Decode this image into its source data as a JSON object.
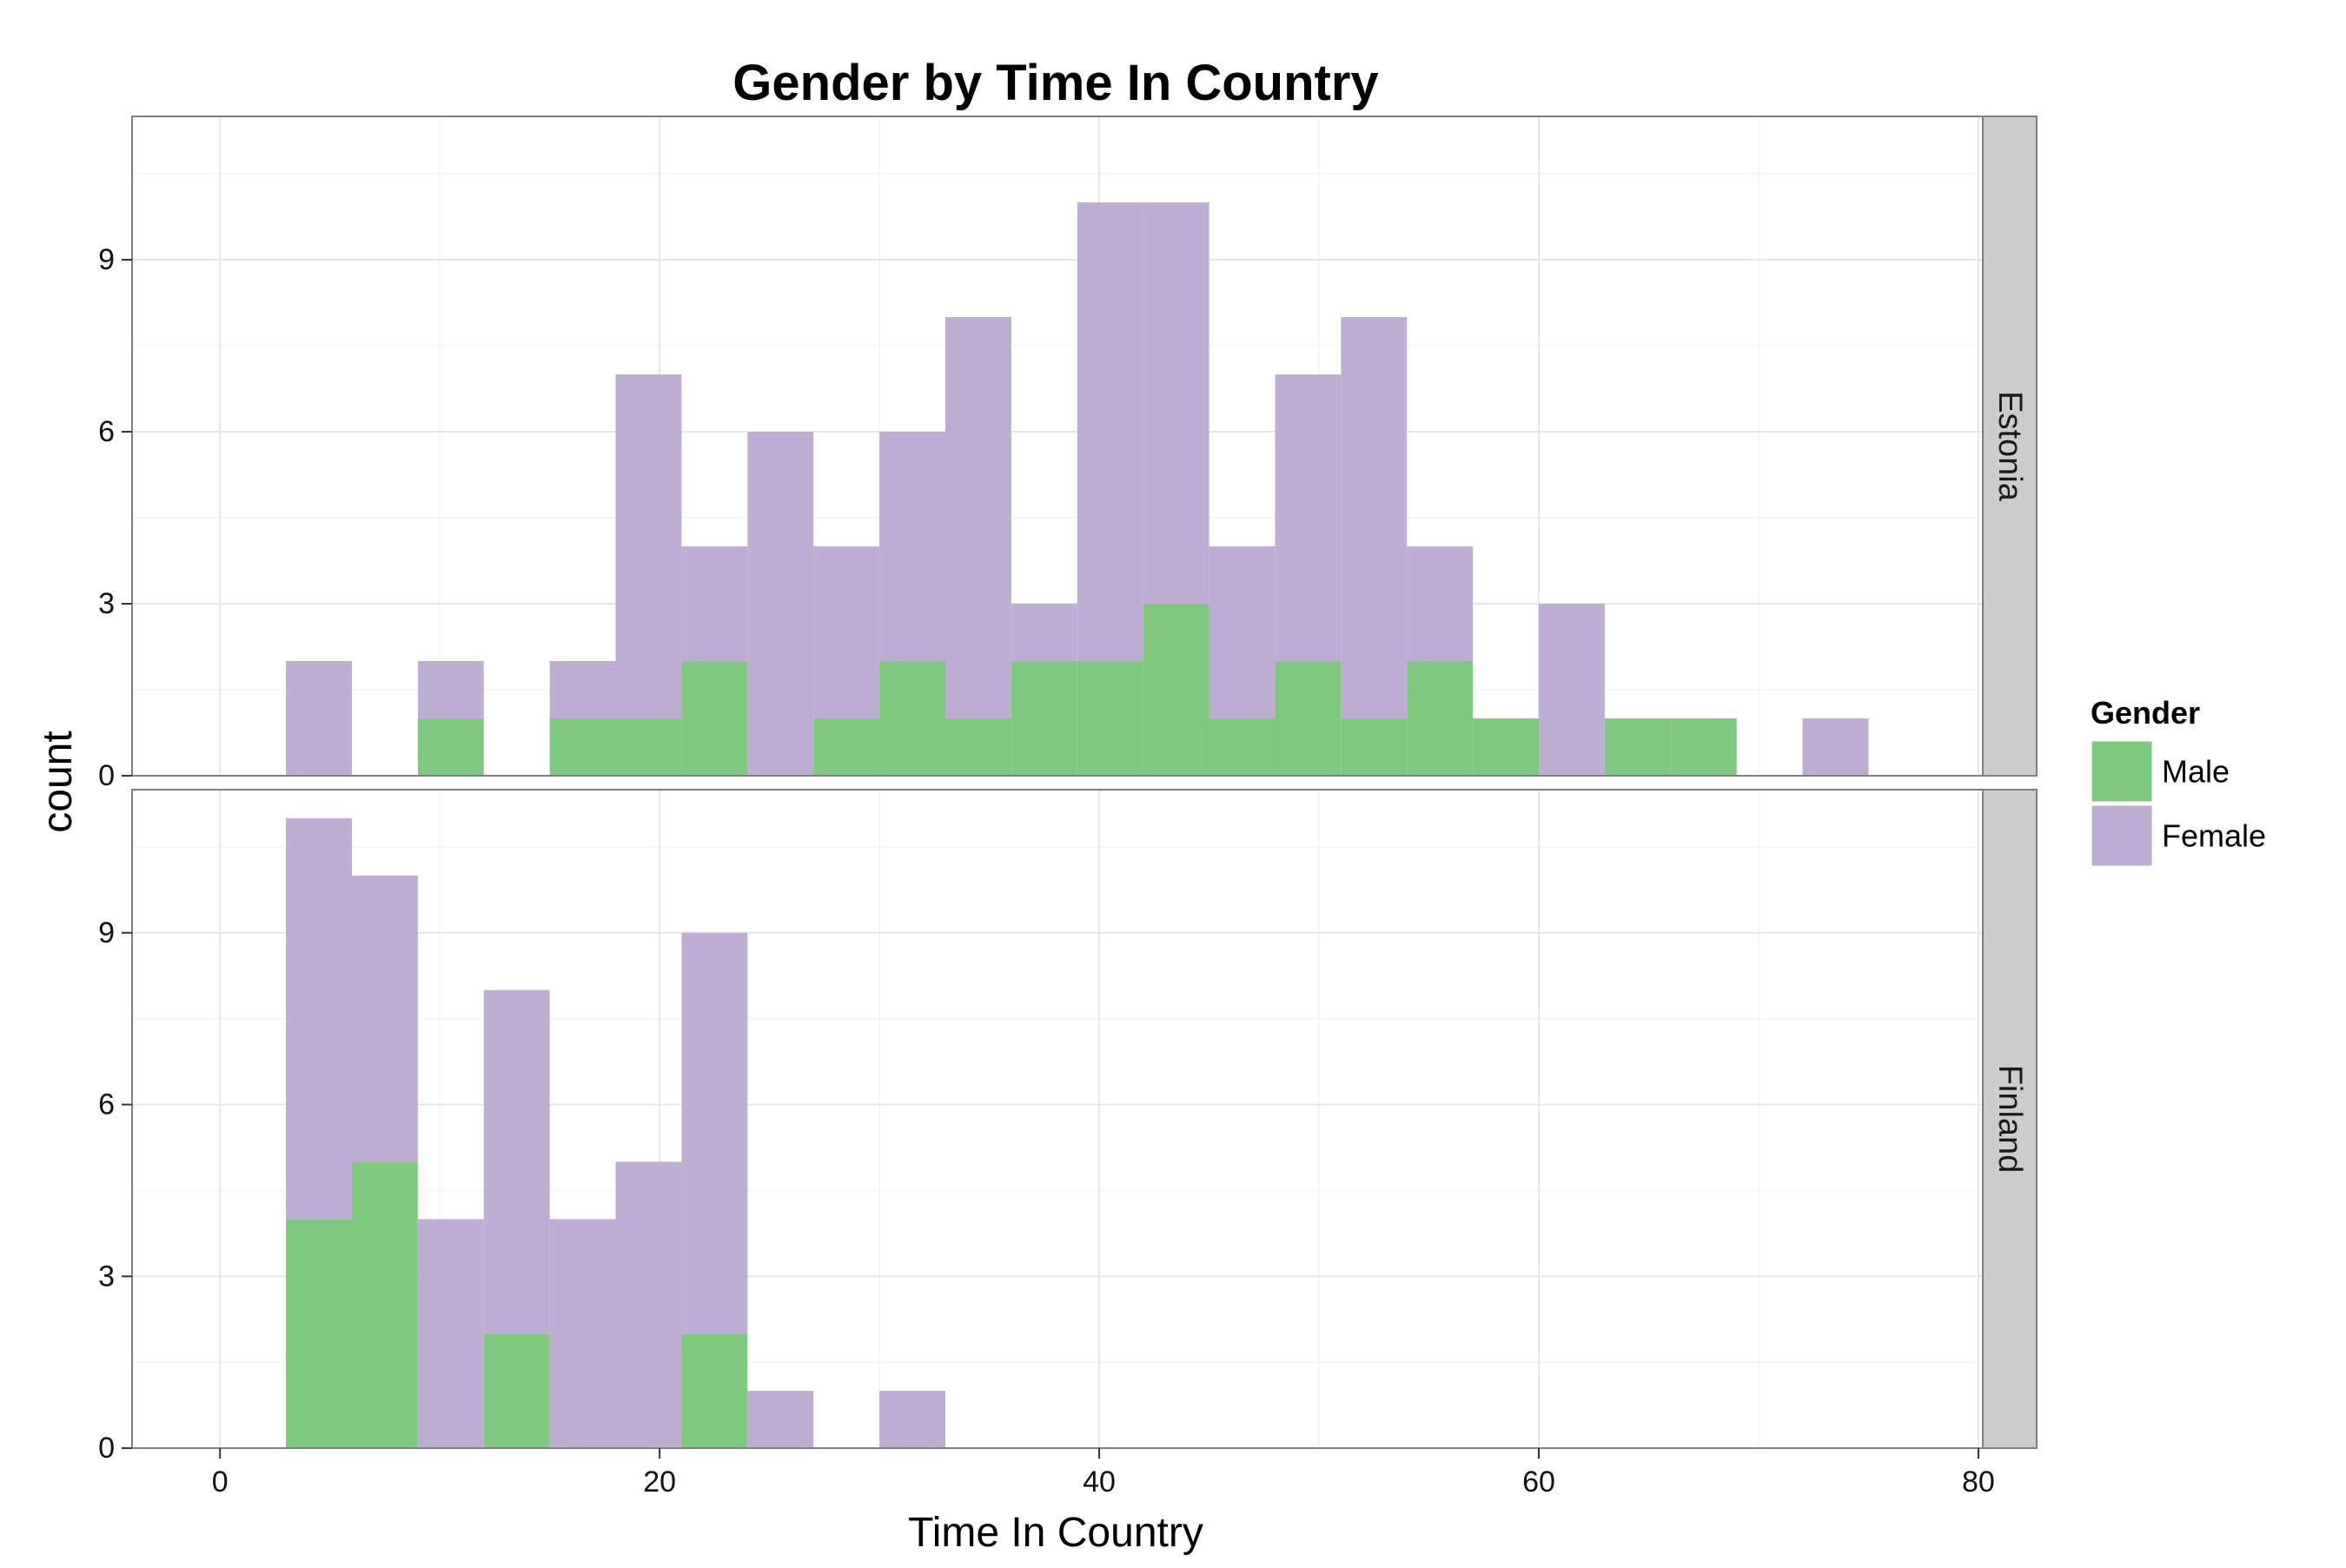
{
  "chart_data": {
    "type": "bar",
    "subtype": "stacked histogram, faceted",
    "title": "Gender by Time In Country",
    "xlabel": "Time In Country",
    "ylabel": "count",
    "xlim": [
      -4,
      80.2
    ],
    "ylim": [
      0,
      11.5
    ],
    "x_ticks": [
      0,
      20,
      40,
      60,
      80
    ],
    "y_ticks": [
      0,
      3,
      6,
      9
    ],
    "bin_width": 3,
    "grid": true,
    "legend": {
      "title": "Gender",
      "position": "right",
      "entries": [
        {
          "name": "Male",
          "color": "#7fc97f"
        },
        {
          "name": "Female",
          "color": "#beaed4"
        }
      ]
    },
    "series_colors": {
      "male": "#7fc97f",
      "female": "#beaed4"
    },
    "facets": [
      {
        "label": "Estonia",
        "bins": [
          {
            "x0": 3,
            "x1": 6,
            "male": 0,
            "female": 2
          },
          {
            "x0": 9,
            "x1": 12,
            "male": 1,
            "female": 1
          },
          {
            "x0": 15,
            "x1": 18,
            "male": 1,
            "female": 1
          },
          {
            "x0": 18,
            "x1": 21,
            "male": 1,
            "female": 6
          },
          {
            "x0": 21,
            "x1": 24,
            "male": 2,
            "female": 2
          },
          {
            "x0": 24,
            "x1": 27,
            "male": 0,
            "female": 6
          },
          {
            "x0": 27,
            "x1": 30,
            "male": 1,
            "female": 3
          },
          {
            "x0": 30,
            "x1": 33,
            "male": 2,
            "female": 4
          },
          {
            "x0": 33,
            "x1": 36,
            "male": 1,
            "female": 7
          },
          {
            "x0": 36,
            "x1": 39,
            "male": 2,
            "female": 1
          },
          {
            "x0": 39,
            "x1": 42,
            "male": 2,
            "female": 8
          },
          {
            "x0": 42,
            "x1": 45,
            "male": 3,
            "female": 7
          },
          {
            "x0": 45,
            "x1": 48,
            "male": 1,
            "female": 3
          },
          {
            "x0": 48,
            "x1": 51,
            "male": 2,
            "female": 5
          },
          {
            "x0": 51,
            "x1": 54,
            "male": 1,
            "female": 7
          },
          {
            "x0": 54,
            "x1": 57,
            "male": 2,
            "female": 2
          },
          {
            "x0": 57,
            "x1": 60,
            "male": 1,
            "female": 0
          },
          {
            "x0": 60,
            "x1": 63,
            "male": 0,
            "female": 3
          },
          {
            "x0": 63,
            "x1": 66,
            "male": 1,
            "female": 0
          },
          {
            "x0": 66,
            "x1": 69,
            "male": 1,
            "female": 0
          },
          {
            "x0": 72,
            "x1": 75,
            "male": 0,
            "female": 1
          }
        ]
      },
      {
        "label": "Finland",
        "bins": [
          {
            "x0": 3,
            "x1": 6,
            "male": 4,
            "female": 7
          },
          {
            "x0": 6,
            "x1": 9,
            "male": 5,
            "female": 5
          },
          {
            "x0": 9,
            "x1": 12,
            "male": 0,
            "female": 4
          },
          {
            "x0": 12,
            "x1": 15,
            "male": 2,
            "female": 6
          },
          {
            "x0": 15,
            "x1": 18,
            "male": 0,
            "female": 4
          },
          {
            "x0": 18,
            "x1": 21,
            "male": 0,
            "female": 5
          },
          {
            "x0": 21,
            "x1": 24,
            "male": 2,
            "female": 7
          },
          {
            "x0": 24,
            "x1": 27,
            "male": 0,
            "female": 1
          },
          {
            "x0": 30,
            "x1": 33,
            "male": 0,
            "female": 1
          }
        ]
      }
    ]
  }
}
